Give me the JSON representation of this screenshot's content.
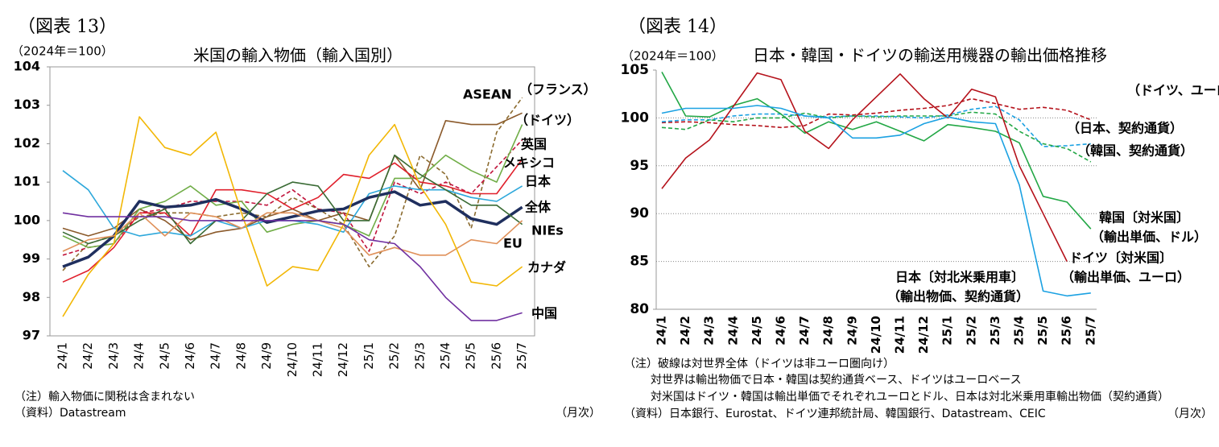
{
  "chart_data": [
    {
      "type": "line",
      "figure_label": "（図表 13）",
      "unit_label": "（2024年＝100）",
      "title": "米国の輸入物価（輸入国別）",
      "categories": [
        "24/1",
        "24/2",
        "24/3",
        "24/4",
        "24/5",
        "24/6",
        "24/7",
        "24/8",
        "24/9",
        "24/10",
        "24/11",
        "24/12",
        "25/1",
        "25/2",
        "25/3",
        "25/4",
        "25/5",
        "25/6",
        "25/7"
      ],
      "ylim": [
        97,
        104
      ],
      "yticks": [
        97,
        98,
        99,
        100,
        101,
        102,
        103,
        104
      ],
      "grid": false,
      "series": [
        {
          "name": "ASEAN",
          "color": "#8B5A2B",
          "dash": false,
          "values": [
            99.8,
            99.6,
            99.8,
            100.3,
            100.0,
            99.5,
            99.7,
            99.8,
            100.1,
            100.3,
            100.0,
            100.2,
            100.0,
            101.7,
            100.8,
            102.6,
            102.5,
            102.5,
            102.8
          ]
        },
        {
          "name": "（フランス）",
          "color": "#8B6B2F",
          "dash": true,
          "values": [
            98.7,
            99.4,
            99.6,
            100.1,
            100.2,
            100.2,
            100.1,
            100.2,
            100.1,
            100.6,
            100.3,
            99.9,
            98.8,
            99.6,
            101.7,
            101.2,
            99.8,
            102.3,
            103.2
          ]
        },
        {
          "name": "（ドイツ）",
          "color": "#C0143C",
          "dash": true,
          "values": [
            99.1,
            99.3,
            99.4,
            100.2,
            100.3,
            100.5,
            100.5,
            100.5,
            100.4,
            100.8,
            100.3,
            100.2,
            99.2,
            101.0,
            100.7,
            101.0,
            100.7,
            101.4,
            102.1
          ]
        },
        {
          "name": "英国",
          "color": "#70AD47",
          "dash": false,
          "values": [
            99.6,
            99.3,
            99.4,
            100.3,
            100.5,
            100.9,
            100.4,
            100.5,
            99.7,
            99.9,
            100.0,
            99.9,
            99.6,
            101.1,
            101.1,
            101.7,
            101.3,
            101.0,
            102.5
          ]
        },
        {
          "name": "メキシコ",
          "color": "#E0202C",
          "dash": false,
          "values": [
            98.4,
            98.7,
            99.3,
            100.2,
            100.2,
            99.6,
            100.8,
            100.8,
            100.7,
            100.3,
            100.6,
            101.2,
            101.1,
            101.5,
            101.0,
            100.9,
            100.7,
            100.7,
            101.6
          ]
        },
        {
          "name": "日本",
          "color": "#2EA8DB",
          "dash": false,
          "values": [
            101.3,
            100.8,
            99.8,
            99.6,
            99.7,
            99.6,
            100.0,
            99.8,
            100.0,
            100.0,
            99.9,
            99.7,
            100.7,
            100.9,
            100.8,
            100.8,
            100.6,
            100.5,
            100.9
          ]
        },
        {
          "name": "全体",
          "color": "#1F2F5E",
          "dash": false,
          "bold": true,
          "values": [
            98.8,
            99.05,
            99.6,
            100.5,
            100.35,
            100.4,
            100.55,
            100.3,
            99.95,
            100.1,
            100.25,
            100.3,
            100.6,
            100.75,
            100.4,
            100.5,
            100.05,
            99.9,
            100.35
          ]
        },
        {
          "name": "NIEs",
          "color": "#3A6B35",
          "dash": false,
          "values": [
            99.7,
            99.4,
            99.6,
            100.0,
            100.3,
            99.4,
            100.0,
            100.0,
            100.7,
            101.0,
            100.9,
            100.0,
            100.0,
            101.7,
            101.2,
            100.8,
            100.4,
            100.4,
            99.9
          ]
        },
        {
          "name": "EU",
          "color": "#E0915A",
          "dash": false,
          "values": [
            99.2,
            99.5,
            99.6,
            100.2,
            99.6,
            100.2,
            100.1,
            99.8,
            100.2,
            100.2,
            100.0,
            99.8,
            99.1,
            99.3,
            99.1,
            99.1,
            99.5,
            99.4,
            100.0
          ]
        },
        {
          "name": "カナダ",
          "color": "#F2B705",
          "dash": false,
          "values": [
            97.5,
            98.6,
            99.4,
            102.7,
            101.9,
            101.7,
            102.3,
            100.2,
            98.3,
            98.8,
            98.7,
            99.9,
            101.7,
            102.5,
            100.9,
            99.9,
            98.4,
            98.3,
            98.8
          ]
        },
        {
          "name": "中国",
          "color": "#7030A0",
          "dash": false,
          "values": [
            100.2,
            100.1,
            100.1,
            100.1,
            100.1,
            100.0,
            100.0,
            100.0,
            100.0,
            100.0,
            100.0,
            99.9,
            99.5,
            99.4,
            98.8,
            98.0,
            97.4,
            97.4,
            97.6
          ]
        }
      ],
      "notes": [
        "（注）輸入物価に関税は含まれない"
      ],
      "source": "（資料）Datastream",
      "period_label": "（月次）"
    },
    {
      "type": "line",
      "figure_label": "（図表 14）",
      "unit_label": "（2024年＝100）",
      "title": "日本・韓国・ドイツの輸送用機器の輸出価格推移",
      "categories": [
        "24/1",
        "24/2",
        "24/3",
        "24/4",
        "24/5",
        "24/6",
        "24/7",
        "24/8",
        "24/9",
        "24/10",
        "24/11",
        "24/12",
        "25/1",
        "25/2",
        "25/3",
        "25/4",
        "25/5",
        "25/6",
        "25/7"
      ],
      "ylim": [
        80,
        105
      ],
      "yticks": [
        80,
        85,
        90,
        95,
        100,
        105
      ],
      "grid": true,
      "series": [
        {
          "name": "（ドイツ、ユーロ）",
          "color": "#B5121B",
          "dash": true,
          "values": [
            99.5,
            99.6,
            99.5,
            99.3,
            99.2,
            99.0,
            99.2,
            100.4,
            100.3,
            100.5,
            100.8,
            101.0,
            101.3,
            102.0,
            101.5,
            100.9,
            101.1,
            100.8,
            99.8
          ]
        },
        {
          "name": "（日本、契約通貨）",
          "color": "#1BA1E2",
          "dash": true,
          "values": [
            99.6,
            99.8,
            99.8,
            100.2,
            100.4,
            100.4,
            100.2,
            100.1,
            100.2,
            100.2,
            100.1,
            100.0,
            100.3,
            100.9,
            101.2,
            99.8,
            97.0,
            97.1,
            97.3
          ]
        },
        {
          "name": "（韓国、契約通貨）",
          "color": "#22A745",
          "dash": true,
          "values": [
            99.0,
            98.8,
            99.8,
            99.6,
            100.0,
            100.0,
            100.5,
            100.0,
            100.2,
            100.1,
            100.2,
            100.2,
            100.2,
            100.6,
            100.4,
            98.6,
            97.3,
            96.8,
            95.4
          ]
        },
        {
          "name": "韓国〔対米国〕",
          "subname": "（輸出単価、ドル）",
          "color": "#22A745",
          "dash": false,
          "values": [
            104.8,
            100.2,
            100.1,
            101.3,
            102.0,
            100.4,
            98.4,
            99.6,
            98.8,
            99.6,
            98.6,
            97.6,
            99.3,
            99.0,
            98.6,
            97.4,
            91.8,
            91.2,
            88.4
          ]
        },
        {
          "name": "ドイツ〔対米国〕",
          "subname": "（輸出単価、ユーロ）",
          "color": "#B5121B",
          "dash": false,
          "values": [
            92.6,
            95.8,
            97.7,
            101.2,
            104.7,
            104.0,
            98.6,
            96.8,
            99.8,
            102.2,
            104.6,
            102.0,
            100.0,
            103.0,
            102.2,
            95.0,
            90.0,
            85.0,
            null
          ]
        },
        {
          "name": "日本〔対北米乗用車〕",
          "subname": "（輸出物価、契約通貨）",
          "color": "#1BA1E2",
          "dash": false,
          "values": [
            100.5,
            101.0,
            101.0,
            101.0,
            101.3,
            101.0,
            100.2,
            100.0,
            97.9,
            97.9,
            98.2,
            99.4,
            100.1,
            99.6,
            99.4,
            93.0,
            81.9,
            81.4,
            81.7
          ]
        }
      ],
      "notes": [
        "（注）破線は対世界全体（ドイツは非ユーロ圏向け）",
        "対世界は輸出物価で日本・韓国は契約通貨ベース、ドイツはユーロベース",
        "対米国はドイツ・韓国は輸出単価でそれぞれユーロとドル、日本は対北米乗用車輸出物価（契約通貨）"
      ],
      "source": "（資料）日本銀行、Eurostat、ドイツ連邦統計局、韓国銀行、Datastream、CEIC",
      "period_label": "（月次）"
    }
  ]
}
